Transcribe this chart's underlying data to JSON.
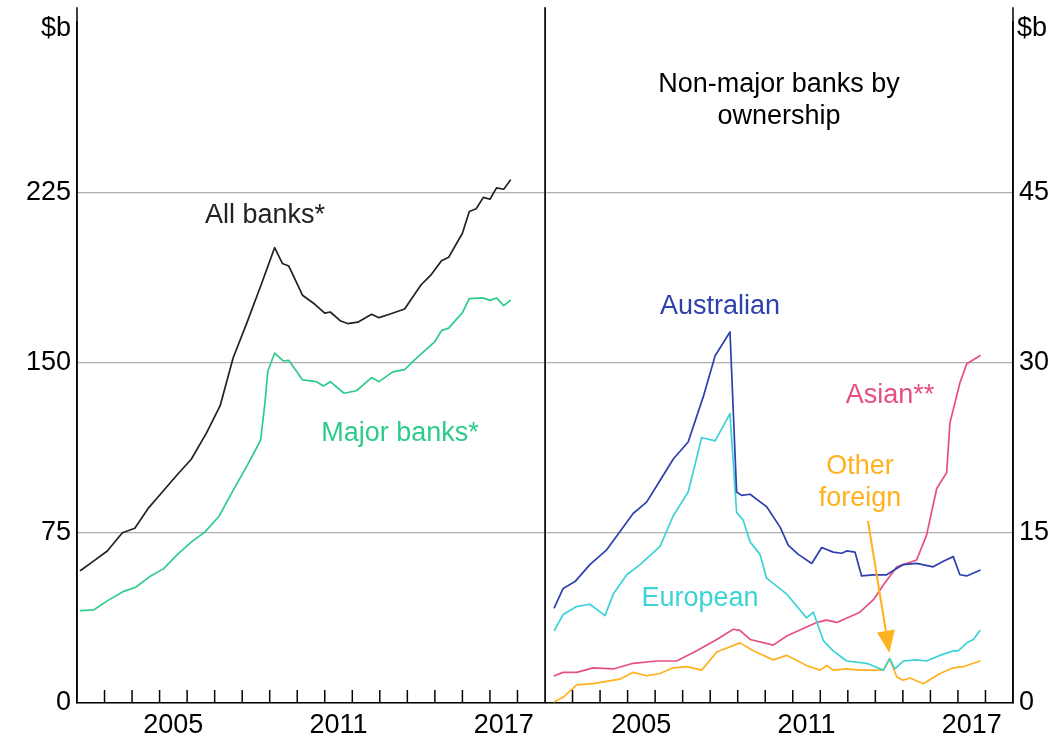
{
  "chart_data": [
    {
      "type": "line",
      "ylabel": "$b",
      "xlim": [
        2002,
        2019
      ],
      "ylim": [
        0,
        300
      ],
      "yticks": [
        0,
        75,
        150,
        225
      ],
      "xticks": [
        {
          "value": 2003,
          "label": null
        },
        {
          "value": 2004,
          "label": null
        },
        {
          "value": 2005,
          "label": null
        },
        {
          "value": 2005.5,
          "label": "2005"
        },
        {
          "value": 2006,
          "label": null
        },
        {
          "value": 2007,
          "label": null
        },
        {
          "value": 2008,
          "label": null
        },
        {
          "value": 2009,
          "label": null
        },
        {
          "value": 2010,
          "label": null
        },
        {
          "value": 2011,
          "label": null
        },
        {
          "value": 2011.5,
          "label": "2011"
        },
        {
          "value": 2012,
          "label": null
        },
        {
          "value": 2013,
          "label": null
        },
        {
          "value": 2014,
          "label": null
        },
        {
          "value": 2015,
          "label": null
        },
        {
          "value": 2016,
          "label": null
        },
        {
          "value": 2017,
          "label": null
        },
        {
          "value": 2017.5,
          "label": "2017"
        },
        {
          "value": 2018,
          "label": null
        }
      ],
      "grid": "y",
      "legend": false,
      "series": [
        {
          "name": "All banks*",
          "color": "#222222",
          "x": [
            2002.13,
            2002.6,
            2003.1,
            2003.65,
            2004.1,
            2004.6,
            2005.1,
            2005.6,
            2006.15,
            2006.7,
            2007.2,
            2007.67,
            2008.17,
            2008.68,
            2009.18,
            2009.46,
            2009.69,
            2010.19,
            2010.63,
            2011.0,
            2011.2,
            2011.58,
            2011.83,
            2012.2,
            2012.7,
            2012.97,
            2013.35,
            2013.9,
            2014.5,
            2014.87,
            2015.24,
            2015.5,
            2016.0,
            2016.25,
            2016.5,
            2016.76,
            2017.0,
            2017.24,
            2017.5,
            2017.74
          ],
          "values": [
            58.4,
            62.5,
            67,
            75,
            77,
            86,
            93,
            100,
            107.4,
            118.9,
            131,
            152,
            167.5,
            184,
            200.7,
            193.7,
            192.6,
            179.7,
            175.8,
            171.8,
            172.3,
            168.3,
            167.2,
            167.8,
            171.3,
            169.8,
            171.3,
            173.6,
            184.3,
            188.8,
            194.9,
            196.4,
            207,
            216.6,
            217.8,
            222.8,
            222,
            227,
            226.4,
            230.4
          ]
        },
        {
          "name": "Major banks*",
          "color": "#2ecc8a",
          "x": [
            2002.13,
            2002.6,
            2003.1,
            2003.7,
            2004.13,
            2004.63,
            2005.14,
            2005.65,
            2006.15,
            2006.65,
            2007.16,
            2007.67,
            2008.17,
            2008.67,
            2008.83,
            2008.93,
            2009.18,
            2009.5,
            2009.69,
            2010.19,
            2010.7,
            2010.95,
            2011.2,
            2011.7,
            2012.15,
            2012.7,
            2012.97,
            2013.47,
            2013.9,
            2014.36,
            2014.99,
            2015.24,
            2015.5,
            2016.0,
            2016.25,
            2016.76,
            2017.0,
            2017.24,
            2017.5,
            2017.74
          ],
          "values": [
            40.7,
            41,
            45,
            49.2,
            51,
            55.6,
            59.1,
            65.5,
            70.9,
            75.4,
            82.3,
            93.7,
            104.4,
            115.8,
            132.6,
            146.2,
            154.2,
            150.7,
            151,
            142.4,
            141.6,
            139.7,
            141.6,
            136.5,
            137.6,
            143.4,
            141.6,
            145.9,
            146.9,
            152.3,
            159.1,
            164.1,
            165.2,
            172,
            178.2,
            178.5,
            177.4,
            178.5,
            175.1,
            177.4
          ]
        }
      ]
    },
    {
      "type": "line",
      "title": "Non-major banks by ownership",
      "y2label": "$b",
      "xlim": [
        2002,
        2019
      ],
      "y2lim": [
        0,
        60
      ],
      "y2ticks": [
        0,
        15,
        30,
        45
      ],
      "xticks": [
        {
          "value": 2003,
          "label": null
        },
        {
          "value": 2004,
          "label": null
        },
        {
          "value": 2005,
          "label": null
        },
        {
          "value": 2005.5,
          "label": "2005"
        },
        {
          "value": 2006,
          "label": null
        },
        {
          "value": 2007,
          "label": null
        },
        {
          "value": 2008,
          "label": null
        },
        {
          "value": 2009,
          "label": null
        },
        {
          "value": 2010,
          "label": null
        },
        {
          "value": 2011,
          "label": null
        },
        {
          "value": 2011.5,
          "label": "2011"
        },
        {
          "value": 2012,
          "label": null
        },
        {
          "value": 2013,
          "label": null
        },
        {
          "value": 2014,
          "label": null
        },
        {
          "value": 2015,
          "label": null
        },
        {
          "value": 2016,
          "label": null
        },
        {
          "value": 2017,
          "label": null
        },
        {
          "value": 2017.5,
          "label": "2017"
        },
        {
          "value": 2018,
          "label": null
        }
      ],
      "grid": "y",
      "legend": false,
      "series": [
        {
          "name": "Australian",
          "color": "#2e3fae",
          "axis": "y2",
          "x": [
            2002.34,
            2002.66,
            2003.09,
            2003.63,
            2004.24,
            2004.66,
            2005.2,
            2005.69,
            2006.1,
            2006.66,
            2007.2,
            2007.75,
            2008.18,
            2008.72,
            2008.96,
            2009.14,
            2009.45,
            2010.05,
            2010.54,
            2010.84,
            2011.2,
            2011.69,
            2012.05,
            2012.47,
            2012.78,
            2012.96,
            2013.26,
            2013.5,
            2013.93,
            2014.41,
            2015.01,
            2015.5,
            2016.1,
            2016.47,
            2016.83,
            2017.07,
            2017.32,
            2017.8
          ],
          "values": [
            8.4,
            10.1,
            10.7,
            12.2,
            13.5,
            14.9,
            16.7,
            17.7,
            19.3,
            21.5,
            23,
            27,
            30.6,
            32.7,
            18.6,
            18.3,
            18.4,
            17.3,
            15.5,
            13.9,
            13.1,
            12.3,
            13.7,
            13.3,
            13.2,
            13.4,
            13.3,
            11.2,
            11.3,
            11.3,
            12.2,
            12.3,
            12,
            12.5,
            12.9,
            11.3,
            11.2,
            11.7
          ]
        },
        {
          "name": "European",
          "color": "#3dd3d6",
          "axis": "y2",
          "x": [
            2002.34,
            2002.66,
            2003.15,
            2003.63,
            2004.18,
            2004.48,
            2004.97,
            2005.45,
            2006.18,
            2006.66,
            2007.2,
            2007.5,
            2007.69,
            2008.18,
            2008.72,
            2008.96,
            2009.2,
            2009.45,
            2009.81,
            2010.05,
            2010.78,
            2011.5,
            2011.75,
            2012.11,
            2012.47,
            2012.96,
            2013.69,
            2014.29,
            2014.53,
            2014.71,
            2015.01,
            2015.5,
            2015.86,
            2016.35,
            2016.83,
            2017.01,
            2017.32,
            2017.56,
            2017.8
          ],
          "values": [
            6.4,
            7.8,
            8.5,
            8.7,
            7.7,
            9.6,
            11.3,
            12.2,
            13.8,
            16.5,
            18.6,
            21.5,
            23.4,
            23.1,
            25.5,
            16.8,
            16.1,
            14.2,
            13.1,
            11,
            9.6,
            7.5,
            8,
            5.5,
            4.6,
            3.7,
            3.5,
            2.9,
            3.9,
            3,
            3.7,
            3.8,
            3.7,
            4.2,
            4.6,
            4.6,
            5.3,
            5.6,
            6.4
          ]
        },
        {
          "name": "Asian**",
          "color": "#e6507f",
          "axis": "y2",
          "x": [
            2002.34,
            2002.66,
            2003.15,
            2003.75,
            2004.48,
            2005.2,
            2006.06,
            2006.78,
            2007.51,
            2008.24,
            2008.84,
            2009.08,
            2009.45,
            2010.29,
            2010.78,
            2011.5,
            2011.87,
            2012.23,
            2012.6,
            2013.44,
            2013.93,
            2014.29,
            2014.78,
            2015.5,
            2015.86,
            2016.23,
            2016.59,
            2016.71,
            2017.07,
            2017.32,
            2017.8
          ],
          "values": [
            2.4,
            2.7,
            2.7,
            3.1,
            3,
            3.5,
            3.7,
            3.7,
            4.6,
            5.6,
            6.5,
            6.4,
            5.6,
            5.1,
            5.9,
            6.7,
            7.1,
            7.3,
            7.1,
            8,
            9.1,
            10.4,
            12,
            12.6,
            14.8,
            18.9,
            20.3,
            24.7,
            28.2,
            29.9,
            30.6
          ]
        },
        {
          "name": "Other foreign",
          "color": "#ffb11f",
          "axis": "y2",
          "x": [
            2002.34,
            2002.66,
            2003.15,
            2003.75,
            2004.72,
            2005.2,
            2005.69,
            2006.18,
            2006.66,
            2007.15,
            2007.69,
            2008.24,
            2009.08,
            2009.57,
            2010.29,
            2010.78,
            2011.5,
            2011.99,
            2012.23,
            2012.47,
            2012.96,
            2013.44,
            2014.29,
            2014.51,
            2014.78,
            2015.01,
            2015.26,
            2015.74,
            2016.35,
            2016.83,
            2017.2,
            2017.8
          ],
          "values": [
            0.1,
            0.5,
            1.6,
            1.7,
            2.1,
            2.7,
            2.4,
            2.6,
            3.1,
            3.2,
            2.9,
            4.5,
            5.3,
            4.6,
            3.8,
            4.2,
            3.3,
            2.9,
            3.3,
            2.9,
            3,
            2.9,
            2.9,
            3.9,
            2.3,
            2,
            2.2,
            1.7,
            2.6,
            3.1,
            3.2,
            3.7
          ]
        }
      ]
    }
  ]
}
